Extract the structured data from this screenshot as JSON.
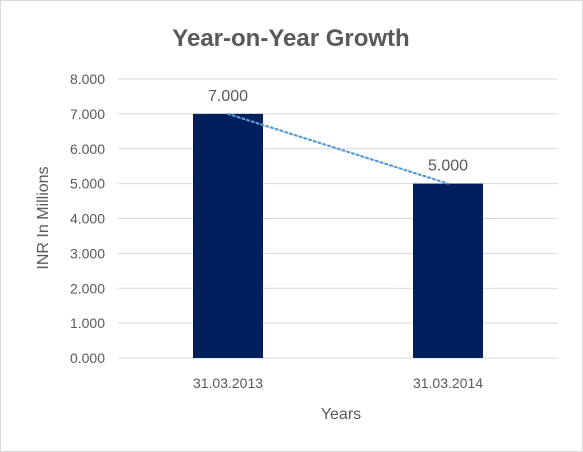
{
  "chart_data": {
    "type": "bar",
    "title": "Year-on-Year Growth",
    "xlabel": "Years",
    "ylabel": "INR In Millions",
    "categories": [
      "31.03.2013",
      "31.03.2014"
    ],
    "values": [
      7,
      5
    ],
    "value_labels": [
      "7.000",
      "5.000"
    ],
    "ylim": [
      0,
      8
    ],
    "yticks": [
      0,
      1,
      2,
      3,
      4,
      5,
      6,
      7,
      8
    ],
    "ytick_labels": [
      "0.000",
      "1.000",
      "2.000",
      "3.000",
      "4.000",
      "5.000",
      "6.000",
      "7.000",
      "8.000"
    ],
    "grid": true,
    "legend": "none",
    "trendline": "linear, dotted",
    "colors": {
      "bar": "#001f5c",
      "trendline": "#5b9bd5",
      "grid": "#d9d9d9",
      "text": "#595959"
    }
  }
}
